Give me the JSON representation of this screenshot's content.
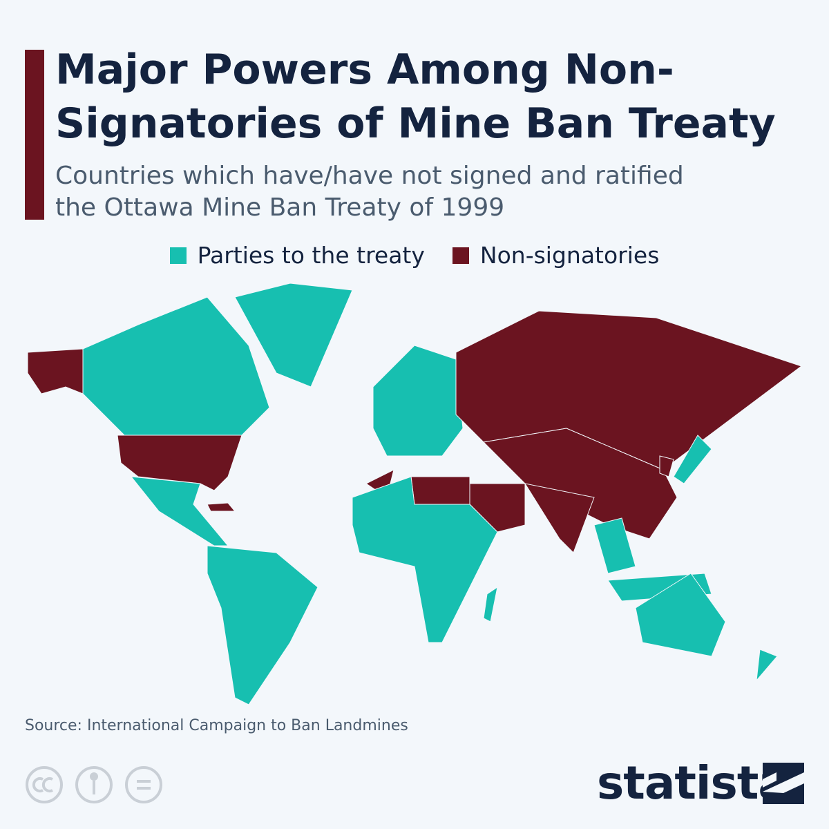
{
  "header": {
    "title": "Major Powers Among Non-Signatories of Mine Ban Treaty",
    "subtitle": "Countries which have/have not signed and ratified the Ottawa Mine Ban Treaty of 1999"
  },
  "legend": {
    "items": [
      {
        "label": "Parties to the treaty",
        "color": "#17bfb0"
      },
      {
        "label": "Non-signatories",
        "color": "#6b1420"
      }
    ]
  },
  "footer": {
    "source": "Source: International Campaign to Ban Landmines",
    "brand": "statista"
  }
}
